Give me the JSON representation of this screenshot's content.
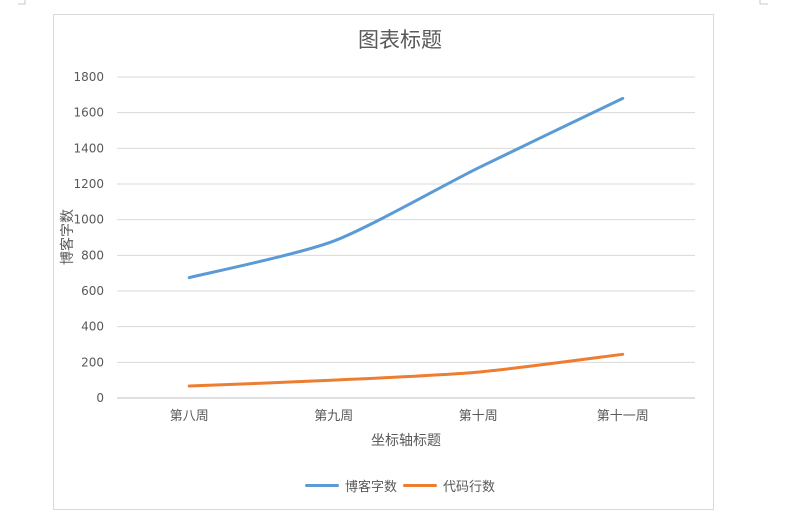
{
  "chart_data": {
    "type": "line",
    "title": "图表标题",
    "xlabel": "坐标轴标题",
    "ylabel": "博客字数",
    "categories": [
      "第八周",
      "第九周",
      "第十周",
      "第十一周"
    ],
    "ylim": [
      0,
      1800
    ],
    "yticks": [
      0,
      200,
      400,
      600,
      800,
      1000,
      1200,
      1400,
      1600,
      1800
    ],
    "grid": true,
    "legend": "bottom",
    "series": [
      {
        "name": "博客字数",
        "color": "#5b9bd5",
        "values": [
          675,
          880,
          1290,
          1680
        ]
      },
      {
        "name": "代码行数",
        "color": "#ed7d31",
        "values": [
          67,
          100,
          145,
          245
        ]
      }
    ]
  }
}
